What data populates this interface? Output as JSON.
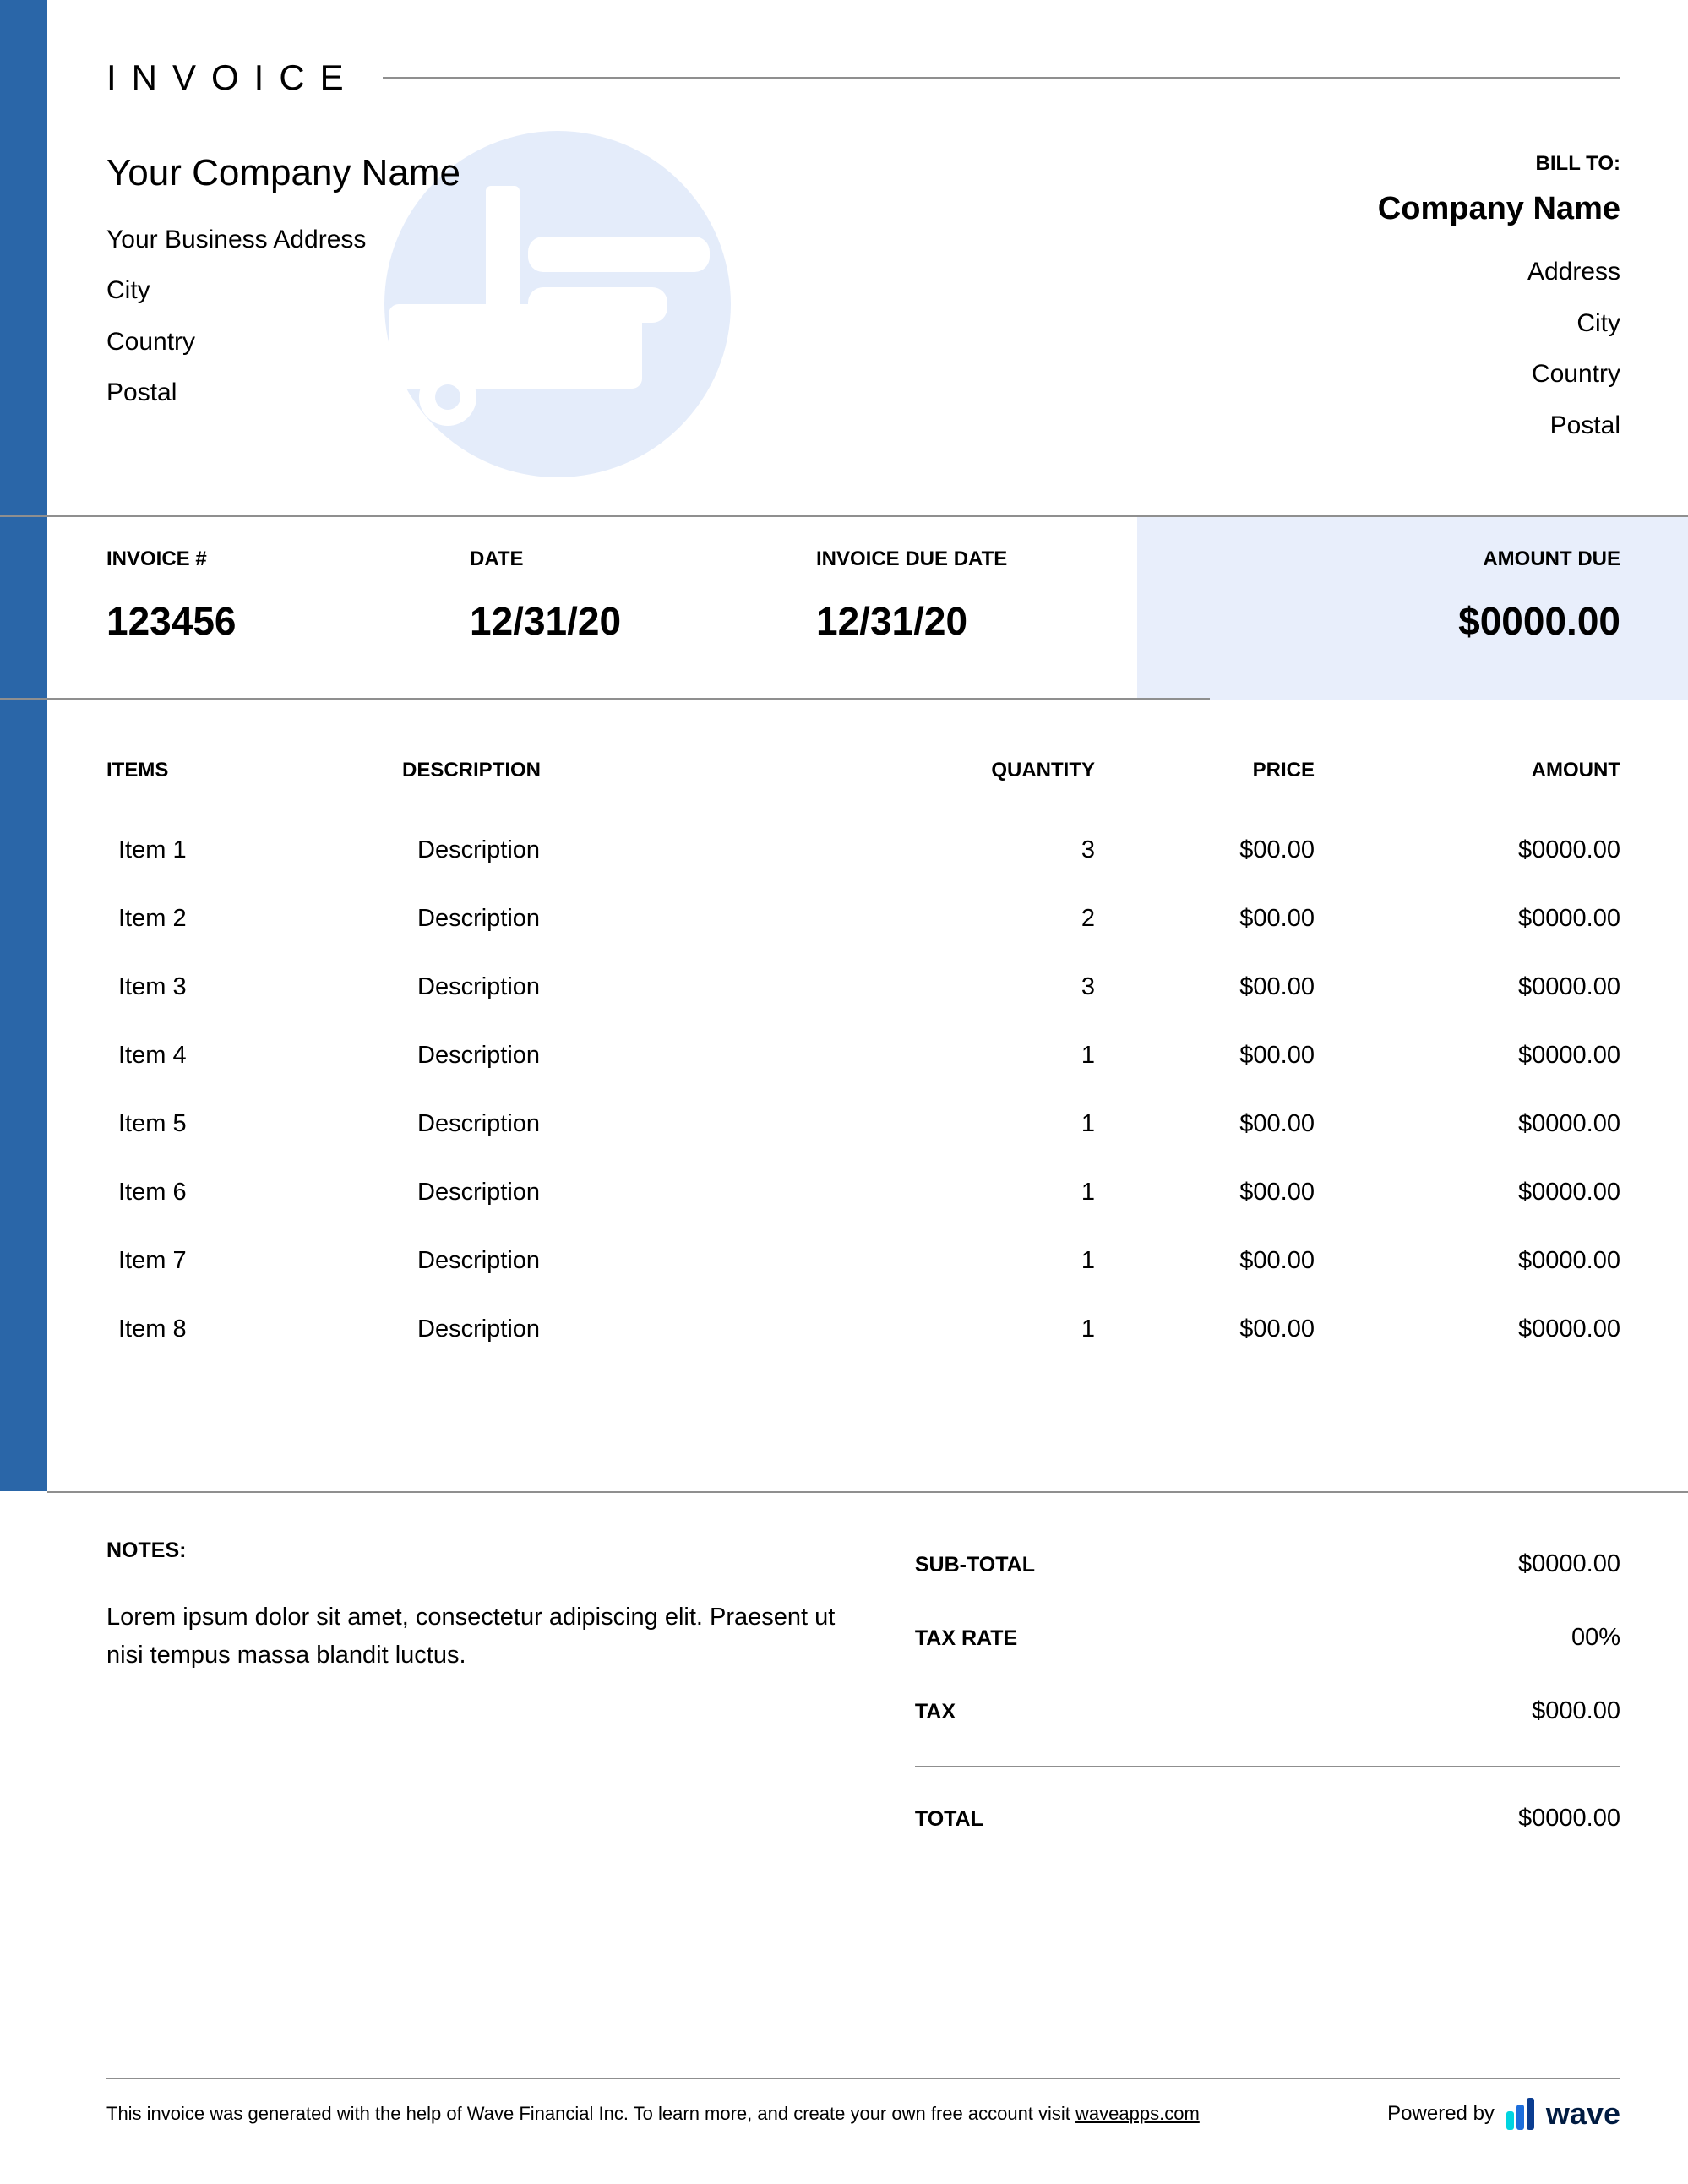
{
  "colors": {
    "sidebar": "#2a66a8",
    "divider": "#8f8f8f",
    "amount_bg": "#e8eefb",
    "watermark": "#e4ecfa",
    "wave_text": "#001b41",
    "wave_bar1": "#00d4e0",
    "wave_bar2": "#1d6edc",
    "wave_bar3": "#0a3d91"
  },
  "header": {
    "title": "INVOICE"
  },
  "from": {
    "company": "Your Company Name",
    "address": "Your Business Address",
    "city": "City",
    "country": "Country",
    "postal": "Postal"
  },
  "bill_to": {
    "label": "BILL TO:",
    "company": "Company Name",
    "address": "Address",
    "city": "City",
    "country": "Country",
    "postal": "Postal"
  },
  "meta": {
    "invoice_label": "INVOICE #",
    "invoice_number": "123456",
    "date_label": "DATE",
    "date": "12/31/20",
    "due_label": "INVOICE DUE DATE",
    "due_date": "12/31/20",
    "amount_label": "AMOUNT DUE",
    "amount_due": "$0000.00"
  },
  "columns": {
    "items": "ITEMS",
    "description": "DESCRIPTION",
    "quantity": "QUANTITY",
    "price": "PRICE",
    "amount": "AMOUNT"
  },
  "items": [
    {
      "name": "Item 1",
      "description": "Description",
      "quantity": "3",
      "price": "$00.00",
      "amount": "$0000.00"
    },
    {
      "name": "Item 2",
      "description": "Description",
      "quantity": "2",
      "price": "$00.00",
      "amount": "$0000.00"
    },
    {
      "name": "Item 3",
      "description": "Description",
      "quantity": "3",
      "price": "$00.00",
      "amount": "$0000.00"
    },
    {
      "name": "Item 4",
      "description": "Description",
      "quantity": "1",
      "price": "$00.00",
      "amount": "$0000.00"
    },
    {
      "name": "Item 5",
      "description": "Description",
      "quantity": "1",
      "price": "$00.00",
      "amount": "$0000.00"
    },
    {
      "name": "Item 6",
      "description": "Description",
      "quantity": "1",
      "price": "$00.00",
      "amount": "$0000.00"
    },
    {
      "name": "Item 7",
      "description": "Description",
      "quantity": "1",
      "price": "$00.00",
      "amount": "$0000.00"
    },
    {
      "name": "Item 8",
      "description": "Description",
      "quantity": "1",
      "price": "$00.00",
      "amount": "$0000.00"
    }
  ],
  "notes": {
    "label": "NOTES:",
    "text": "Lorem ipsum dolor sit amet, consectetur adipiscing elit. Praesent ut nisi tempus massa blandit luctus."
  },
  "totals": {
    "subtotal_label": "SUB-TOTAL",
    "subtotal": "$0000.00",
    "taxrate_label": "TAX RATE",
    "taxrate": "00%",
    "tax_label": "TAX",
    "tax": "$000.00",
    "total_label": "TOTAL",
    "total": "$0000.00"
  },
  "footer": {
    "text_pre": "This invoice was generated with the help of Wave Financial Inc. To learn more, and create your own free account visit ",
    "link": "waveapps.com",
    "powered_by": "Powered by",
    "brand": "wave"
  }
}
